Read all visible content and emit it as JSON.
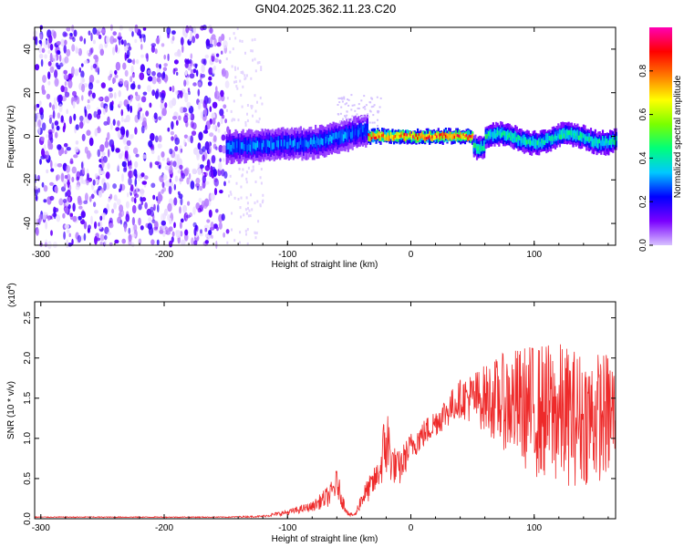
{
  "title": "GN04.2025.362.11.23.C20",
  "colors": {
    "snr_line": "#ee2a2a",
    "background": "#ffffff",
    "axis": "#000000"
  },
  "chart_data": [
    {
      "type": "heatmap",
      "xlabel": "Height of straight line (km)",
      "ylabel": "Frequency (Hz)",
      "xlim": [
        -305,
        166
      ],
      "ylim": [
        -50,
        50
      ],
      "x_ticks": [
        "-300",
        "-200",
        "-100",
        "0",
        "100"
      ],
      "x_tick_values": [
        -300,
        -200,
        -100,
        0,
        100
      ],
      "y_ticks": [
        "40",
        "20",
        "0",
        "-20",
        "-40"
      ],
      "y_tick_values": [
        40,
        20,
        0,
        -20,
        -40
      ],
      "colorbar": {
        "label": "Normalized spectral amplitude",
        "range": [
          0,
          1
        ],
        "ticks": [
          "0.0",
          "0.2",
          "0.4",
          "0.6",
          "0.8"
        ],
        "tick_values": [
          0,
          0.2,
          0.4,
          0.6,
          0.8
        ],
        "stops": [
          "#d8c2ff",
          "#7a00ff",
          "#0000ff",
          "#00c8ff",
          "#00ff7a",
          "#7aff00",
          "#ffff00",
          "#ff7a00",
          "#ff0000",
          "#ff00b4"
        ]
      },
      "regions": [
        {
          "x": [
            -305,
            -150
          ],
          "freq": [
            -50,
            50
          ],
          "amplitude": 0.05,
          "description": "noise"
        },
        {
          "x": [
            -150,
            -35
          ],
          "freq": [
            -15,
            10
          ],
          "amplitude": 0.3
        },
        {
          "x": [
            -35,
            50
          ],
          "freq": [
            -3,
            3
          ],
          "amplitude": 0.8
        },
        {
          "x": [
            50,
            166
          ],
          "freq": [
            -8,
            5
          ],
          "amplitude": 0.4
        }
      ]
    },
    {
      "type": "line",
      "xlabel": "Height of straight line (km)",
      "ylabel": "SNR (10 * v/v)",
      "y_multiplier": "(x10",
      "y_multiplier_exp": "4",
      "y_multiplier_close": ")",
      "xlim": [
        -305,
        166
      ],
      "ylim": [
        0,
        2.7
      ],
      "x_ticks": [
        "-300",
        "-200",
        "-100",
        "0",
        "100"
      ],
      "x_tick_values": [
        -300,
        -200,
        -100,
        0,
        100
      ],
      "y_ticks": [
        "0.0",
        "0.5",
        "1.0",
        "1.5",
        "2.0",
        "2.5"
      ],
      "y_tick_values": [
        0,
        0.5,
        1.0,
        1.5,
        2.0,
        2.5
      ],
      "series": [
        {
          "x": [
            -305,
            -250,
            -200,
            -150,
            -120,
            -100,
            -80,
            -65,
            -60,
            -55,
            -50,
            -45,
            -40,
            -30,
            -25,
            -20,
            -15,
            -10,
            0,
            20,
            40,
            60,
            80,
            100,
            120,
            140,
            166
          ],
          "mean": [
            0.02,
            0.02,
            0.02,
            0.02,
            0.03,
            0.08,
            0.15,
            0.3,
            0.45,
            0.2,
            0.05,
            0.05,
            0.25,
            0.45,
            0.6,
            1.0,
            0.7,
            0.6,
            0.9,
            1.2,
            1.5,
            1.5,
            1.45,
            1.35,
            1.3,
            1.25,
            1.3
          ],
          "spread": [
            0.005,
            0.005,
            0.005,
            0.005,
            0.01,
            0.03,
            0.05,
            0.12,
            0.15,
            0.08,
            0.02,
            0.02,
            0.1,
            0.15,
            0.15,
            0.5,
            0.2,
            0.2,
            0.15,
            0.15,
            0.2,
            0.35,
            0.55,
            0.7,
            0.75,
            0.7,
            0.65
          ]
        }
      ]
    }
  ]
}
